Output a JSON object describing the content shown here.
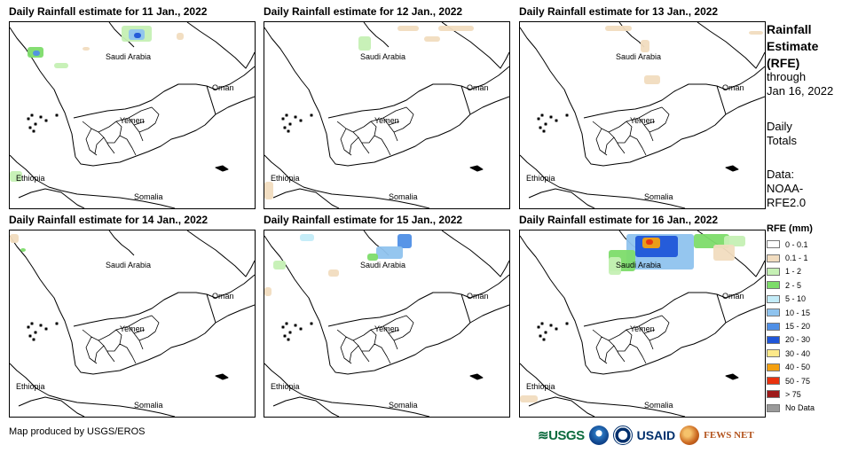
{
  "panels": [
    {
      "title": "Daily Rainfall estimate for 11 Jan., 2022"
    },
    {
      "title": "Daily Rainfall estimate for 12 Jan., 2022"
    },
    {
      "title": "Daily Rainfall estimate for 13 Jan., 2022"
    },
    {
      "title": "Daily Rainfall estimate for 14 Jan., 2022"
    },
    {
      "title": "Daily Rainfall estimate for 15 Jan., 2022"
    },
    {
      "title": "Daily Rainfall estimate for 16 Jan., 2022"
    }
  ],
  "map_labels": {
    "saudi": "Saudi Arabia",
    "oman": "Oman",
    "yemen": "Yemen",
    "ethiopia": "Ethiopia",
    "somalia": "Somalia"
  },
  "sidebar": {
    "title_line1": "Rainfall",
    "title_line2": "Estimate",
    "title_line3": "(RFE)",
    "through": "through",
    "date": "Jan 16, 2022",
    "daily_line1": "Daily",
    "daily_line2": "Totals",
    "data_line1": "Data:",
    "data_line2": "NOAA-",
    "data_line3": "RFE2.0"
  },
  "legend": {
    "title": "RFE (mm)",
    "items": [
      {
        "label": "0 - 0.1",
        "color": "#ffffff"
      },
      {
        "label": "0.1 - 1",
        "color": "#f1dcbf"
      },
      {
        "label": "1 - 2",
        "color": "#c5f0b4"
      },
      {
        "label": "2 - 5",
        "color": "#7ddc6a"
      },
      {
        "label": "5 - 10",
        "color": "#c3ecf8"
      },
      {
        "label": "10 - 15",
        "color": "#8fc3ee"
      },
      {
        "label": "15 - 20",
        "color": "#4f8fe6"
      },
      {
        "label": "20 - 30",
        "color": "#1f56d8"
      },
      {
        "label": "30 - 40",
        "color": "#fde98a"
      },
      {
        "label": "40 - 50",
        "color": "#f4a00f"
      },
      {
        "label": "50 - 75",
        "color": "#e9320f"
      },
      {
        "label": "> 75",
        "color": "#9e1a1a"
      },
      {
        "label": "No Data",
        "color": "#9a9a9a"
      }
    ]
  },
  "credit": "Map produced by USGS/EROS",
  "logos": {
    "usgs": "USGS",
    "usaid": "USAID",
    "fews": "FEWS NET"
  }
}
